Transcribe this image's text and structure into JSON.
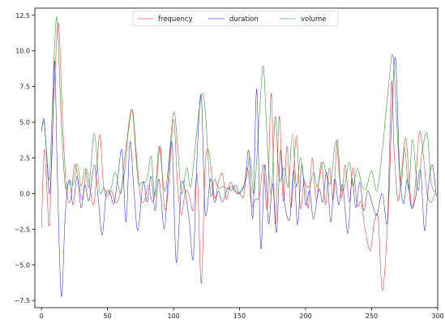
{
  "chart_data": {
    "type": "line",
    "title": "",
    "xlabel": "",
    "ylabel": "",
    "xlim": [
      -5,
      300
    ],
    "ylim": [
      -8,
      13
    ],
    "xticks": [
      0,
      50,
      100,
      150,
      200,
      250,
      300
    ],
    "xtick_labels": [
      "0",
      "50",
      "100",
      "150",
      "200",
      "250",
      "300"
    ],
    "yticks": [
      -7.5,
      -5,
      -2.5,
      0,
      2.5,
      5,
      7.5,
      10,
      12.5
    ],
    "ytick_labels": [
      "−7.5",
      "−5.0",
      "−2.5",
      "0.0",
      "2.5",
      "5.0",
      "7.5",
      "10.0",
      "12.5"
    ],
    "grid": false,
    "legend": {
      "position": "top-center",
      "columns": 3
    },
    "series": [
      {
        "name": "frequency",
        "color": "#ff0000",
        "x": [
          0,
          2,
          4,
          6,
          8,
          10,
          13,
          16,
          19,
          22,
          25,
          28,
          31,
          34,
          37,
          40,
          44,
          47,
          50,
          53,
          56,
          59,
          63,
          66,
          69,
          72,
          75,
          78,
          81,
          84,
          87,
          90,
          93,
          96,
          100,
          103,
          106,
          109,
          112,
          115,
          118,
          121,
          124,
          127,
          131,
          134,
          137,
          140,
          143,
          146,
          150,
          153,
          156,
          159,
          162,
          165,
          168,
          171,
          174,
          177,
          180,
          183,
          186,
          189,
          193,
          196,
          199,
          202,
          205,
          208,
          212,
          215,
          218,
          221,
          224,
          227,
          230,
          233,
          236,
          239,
          242,
          245,
          249,
          252,
          255,
          258,
          262,
          265,
          267,
          270,
          273,
          276,
          280,
          283,
          286,
          289,
          292,
          295,
          298
        ],
        "y": [
          -2.4,
          3.0,
          0.4,
          -2.2,
          3.5,
          8.0,
          11.9,
          5.0,
          0.2,
          -0.5,
          2.0,
          0.8,
          -0.4,
          1.7,
          0.2,
          -0.6,
          4.1,
          0.5,
          -0.2,
          0.2,
          -0.6,
          -0.2,
          1.6,
          4.8,
          5.8,
          2.6,
          -0.3,
          -0.5,
          0.6,
          -0.6,
          0.7,
          3.3,
          -1.0,
          0.2,
          5.2,
          0.6,
          -1.5,
          0.2,
          -0.2,
          -1.2,
          1.2,
          -6.3,
          2.0,
          2.8,
          -0.3,
          0.8,
          1.4,
          -0.4,
          0.8,
          0.2,
          0.0,
          -0.2,
          1.8,
          -0.8,
          -0.4,
          -0.2,
          2.0,
          -1.0,
          7.0,
          -2.2,
          5.4,
          -0.5,
          3.3,
          -1.0,
          4.1,
          -1.0,
          1.0,
          -1.0,
          2.5,
          -0.5,
          2.2,
          -0.8,
          1.8,
          -0.4,
          3.8,
          -0.3,
          2.0,
          -0.6,
          1.8,
          -0.8,
          -0.6,
          -2.5,
          -4.0,
          -2.0,
          -1.8,
          -6.8,
          -2.0,
          7.8,
          3.0,
          -0.5,
          1.8,
          3.8,
          -0.8,
          0.5,
          4.3,
          2.8,
          0.0,
          -0.6,
          0.0
        ]
      },
      {
        "name": "duration",
        "color": "#0000ff",
        "x": [
          0,
          2,
          4,
          6,
          8,
          10,
          12,
          15,
          18,
          21,
          24,
          27,
          30,
          33,
          36,
          40,
          43,
          46,
          49,
          52,
          55,
          58,
          61,
          64,
          67,
          70,
          73,
          77,
          80,
          83,
          86,
          89,
          93,
          96,
          99,
          102,
          106,
          109,
          112,
          115,
          118,
          121,
          124,
          128,
          131,
          134,
          137,
          141,
          144,
          147,
          150,
          154,
          157,
          160,
          163,
          166,
          169,
          172,
          175,
          178,
          181,
          184,
          188,
          191,
          194,
          197,
          200,
          203,
          206,
          210,
          213,
          216,
          219,
          222,
          225,
          228,
          232,
          235,
          238,
          241,
          244,
          247,
          251,
          254,
          258,
          262,
          265,
          268,
          271,
          274,
          277,
          280,
          283,
          287,
          290,
          293,
          296,
          299
        ],
        "y": [
          4.3,
          5.2,
          2.5,
          0.0,
          2.8,
          9.3,
          1.5,
          -7.2,
          -1.5,
          0.9,
          -0.8,
          1.2,
          -1.0,
          0.6,
          -0.5,
          2.0,
          -0.4,
          -2.9,
          0.0,
          0.0,
          -0.7,
          1.3,
          3.0,
          -2.0,
          3.6,
          0.2,
          -2.6,
          0.8,
          -0.6,
          1.2,
          -1.2,
          1.0,
          -2.5,
          1.2,
          3.4,
          -4.8,
          0.6,
          0.0,
          -2.0,
          -4.5,
          3.0,
          6.8,
          -1.4,
          1.0,
          -0.6,
          0.2,
          -0.6,
          0.4,
          0.2,
          0.6,
          0.0,
          0.8,
          3.0,
          -1.7,
          7.3,
          -3.8,
          2.0,
          -2.1,
          0.7,
          -2.7,
          3.0,
          -0.6,
          -1.8,
          1.6,
          -2.2,
          2.0,
          -0.8,
          0.2,
          -1.8,
          0.3,
          -0.6,
          1.5,
          -2.0,
          1.0,
          -0.8,
          0.6,
          -2.8,
          1.0,
          -1.0,
          0.8,
          -1.2,
          0.2,
          -0.9,
          -1.5,
          0.0,
          -2.0,
          5.0,
          9.5,
          2.0,
          -0.7,
          1.0,
          -1.0,
          -0.4,
          1.6,
          -2.6,
          0.6,
          2.0,
          -0.2
        ]
      },
      {
        "name": "volume",
        "color": "#008000",
        "x": [
          0,
          2,
          4,
          6,
          8,
          10,
          12,
          15,
          18,
          21,
          24,
          27,
          30,
          33,
          36,
          40,
          44,
          47,
          50,
          53,
          56,
          60,
          63,
          66,
          69,
          73,
          76,
          80,
          83,
          86,
          89,
          93,
          96,
          100,
          103,
          106,
          110,
          113,
          117,
          121,
          124,
          128,
          131,
          134,
          138,
          141,
          145,
          148,
          151,
          155,
          158,
          161,
          165,
          168,
          171,
          174,
          177,
          180,
          184,
          187,
          190,
          193,
          196,
          199,
          203,
          206,
          209,
          213,
          216,
          219,
          223,
          226,
          229,
          233,
          236,
          239,
          243,
          246,
          250,
          254,
          258,
          262,
          266,
          269,
          272,
          275,
          278,
          281,
          285,
          288,
          292,
          295,
          299
        ],
        "y": [
          4.5,
          5.0,
          2.8,
          1.0,
          5.5,
          10.5,
          12.1,
          5.0,
          0.5,
          1.0,
          0.6,
          2.1,
          0.5,
          1.8,
          0.5,
          4.2,
          0.2,
          0.4,
          0.0,
          0.5,
          1.5,
          0.0,
          2.5,
          4.5,
          5.7,
          1.0,
          0.8,
          1.0,
          2.6,
          -0.2,
          3.3,
          0.2,
          1.8,
          5.7,
          3.5,
          0.0,
          1.8,
          0.5,
          3.8,
          6.9,
          5.8,
          0.0,
          1.0,
          0.4,
          0.5,
          0.3,
          0.5,
          0.0,
          0.2,
          1.0,
          2.5,
          0.0,
          5.5,
          8.9,
          3.5,
          0.0,
          5.4,
          1.0,
          1.8,
          0.5,
          4.2,
          0.5,
          2.5,
          0.8,
          0.5,
          1.5,
          0.5,
          2.2,
          1.2,
          0.8,
          3.7,
          0.8,
          0.3,
          2.2,
          0.5,
          1.8,
          0.5,
          0.4,
          1.6,
          0.2,
          3.0,
          6.8,
          9.7,
          5.0,
          0.5,
          3.2,
          0.3,
          3.8,
          0.2,
          2.8,
          4.2,
          0.8,
          0.0
        ]
      }
    ]
  }
}
